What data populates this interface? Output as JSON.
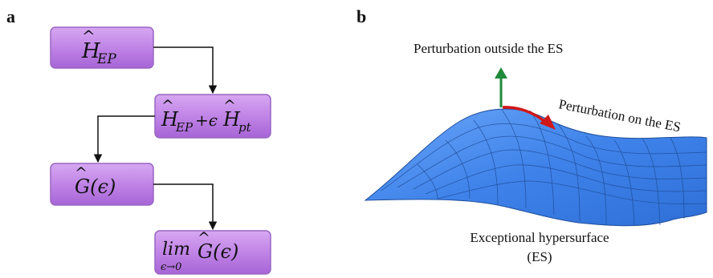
{
  "panel_a": {
    "label": "a",
    "boxes": [
      {
        "main": "H",
        "sub": "EP"
      },
      {
        "main1": "H",
        "sub1": "EP",
        "op": "+ϵ",
        "main2": "H",
        "sub2": "pt"
      },
      {
        "text": "G(ϵ)"
      },
      {
        "lim": "lim",
        "under": "ϵ→0",
        "text": "G(ϵ)"
      }
    ],
    "colors": {
      "box_fill": "#C58BE8",
      "box_stroke": "#8E5AB8",
      "arrow": "#111111"
    }
  },
  "panel_b": {
    "label": "b",
    "label_outside": "Perturbation outside the ES",
    "label_on": "Perturbation on the ES",
    "caption_line1": "Exceptional hypersurface",
    "caption_line2": "(ES)",
    "colors": {
      "surface": "#4D8FEF",
      "grid": "#1F4E9C",
      "green_arrow": "#1F8A3A",
      "red_arrow": "#D01818"
    }
  }
}
